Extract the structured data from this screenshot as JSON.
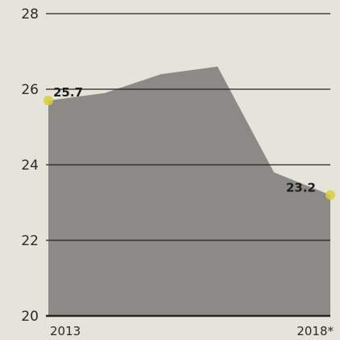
{
  "chart_data": {
    "type": "area",
    "x": [
      2013,
      2014,
      2015,
      2016,
      2017,
      2018
    ],
    "values": [
      25.7,
      25.9,
      26.4,
      26.6,
      23.8,
      23.2
    ],
    "ylim": [
      20,
      28
    ],
    "yticks": [
      "20",
      "22",
      "24",
      "26",
      "28"
    ],
    "xtick_labels": [
      {
        "x": 2013,
        "label": "2013"
      },
      {
        "x": 2018,
        "label": "2018*"
      }
    ],
    "data_labels": [
      {
        "x": 2013,
        "label": "25.7"
      },
      {
        "x": 2018,
        "label": "23.2"
      }
    ],
    "grid": true,
    "colors": {
      "area": "#8b8a86",
      "endpoint_marker": "#d9cf3a",
      "gridline": "#222222",
      "background": "#e6e3da"
    }
  }
}
